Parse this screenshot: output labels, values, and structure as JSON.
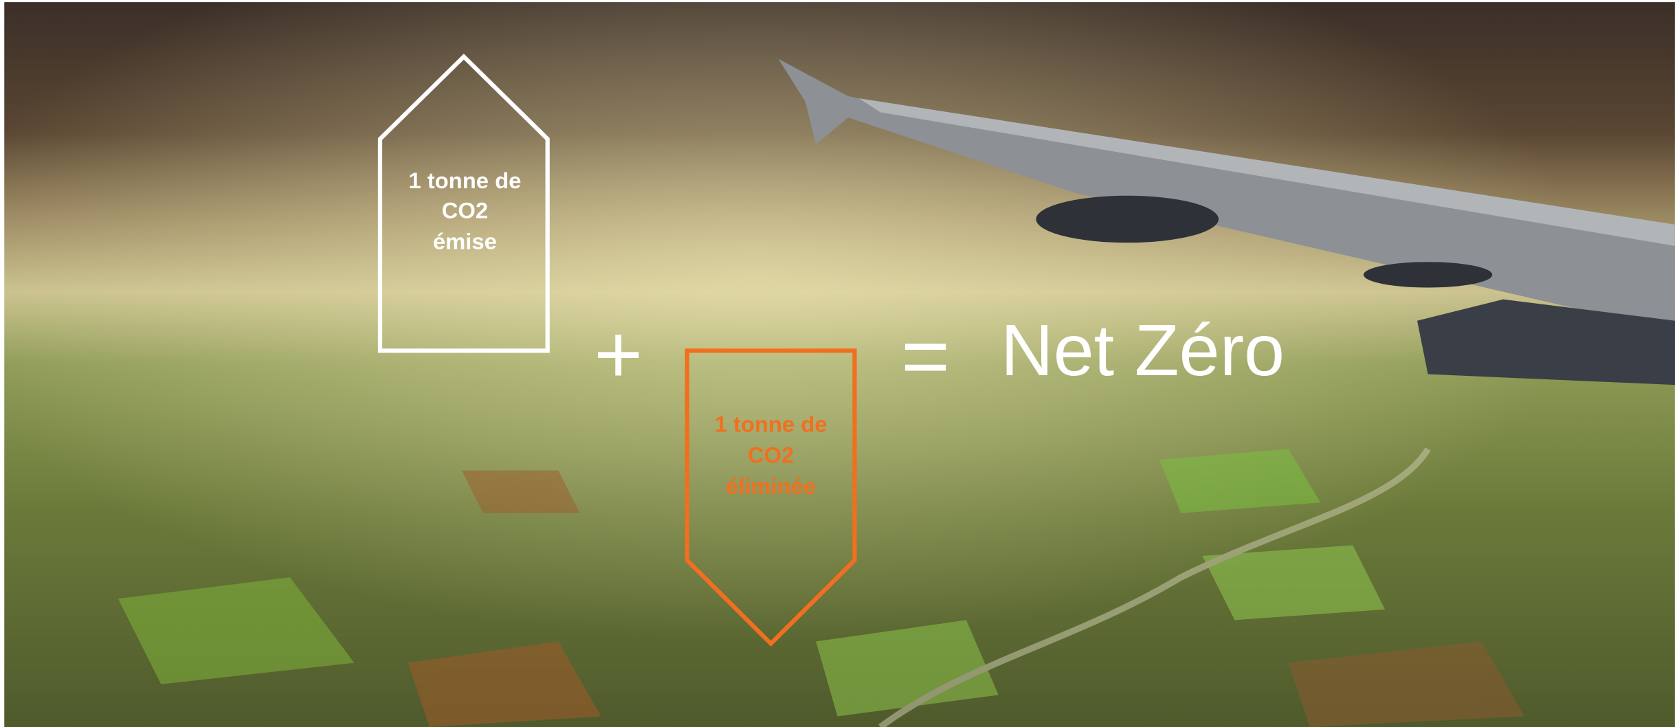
{
  "emitted": {
    "lines": [
      "1 tonne de",
      "CO2",
      "émise"
    ]
  },
  "plus": "+",
  "removed": {
    "lines": [
      "1 tonne de",
      "CO2",
      "éliminée"
    ]
  },
  "equals": "=",
  "result": "Net Zéro"
}
